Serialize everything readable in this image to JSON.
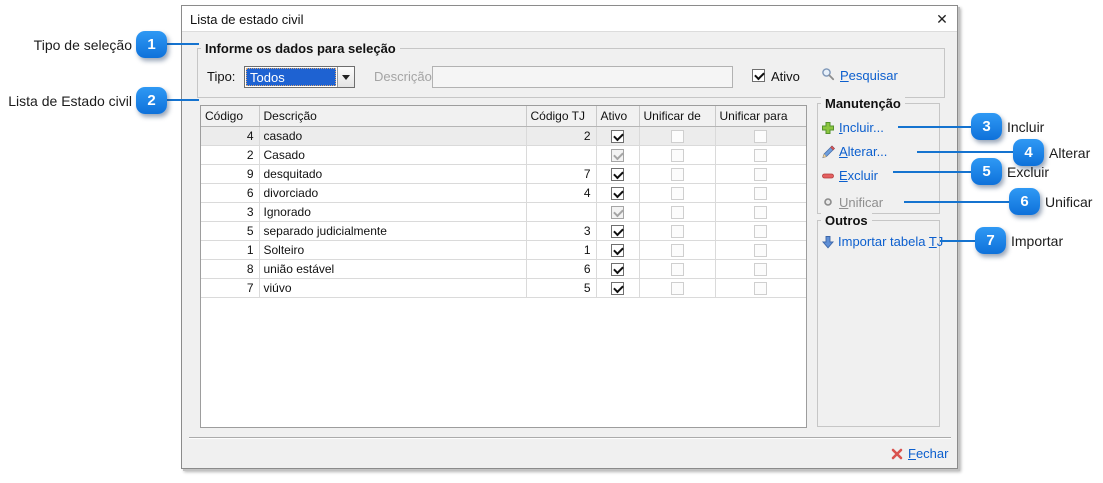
{
  "window": {
    "title": "Lista de estado civil"
  },
  "icons": {
    "close": "✕"
  },
  "filter": {
    "group_title": "Informe os dados para seleção",
    "tipo_label": "Tipo:",
    "tipo_value": "Todos",
    "descricao_label": "Descrição:",
    "descricao_value": "",
    "ativo_label": "Ativo",
    "ativo_checked": true,
    "pesquisar": {
      "u": "P",
      "post": "esquisar"
    }
  },
  "table": {
    "columns": [
      "Código",
      "Descrição",
      "Código TJ",
      "Ativo",
      "Unificar de",
      "Unificar para"
    ],
    "rows": [
      {
        "codigo": "4",
        "descricao": "casado",
        "codigo_tj": "2",
        "ativo": "checked",
        "unificar_de": "unchecked-disabled",
        "unificar_para": "unchecked-disabled",
        "selected": true
      },
      {
        "codigo": "2",
        "descricao": "Casado",
        "codigo_tj": "",
        "ativo": "checked-disabled",
        "unificar_de": "unchecked-disabled",
        "unificar_para": "unchecked-disabled",
        "selected": false
      },
      {
        "codigo": "9",
        "descricao": "desquitado",
        "codigo_tj": "7",
        "ativo": "checked",
        "unificar_de": "unchecked-disabled",
        "unificar_para": "unchecked-disabled",
        "selected": false
      },
      {
        "codigo": "6",
        "descricao": "divorciado",
        "codigo_tj": "4",
        "ativo": "checked",
        "unificar_de": "unchecked-disabled",
        "unificar_para": "unchecked-disabled",
        "selected": false
      },
      {
        "codigo": "3",
        "descricao": "Ignorado",
        "codigo_tj": "",
        "ativo": "checked-disabled",
        "unificar_de": "unchecked-disabled",
        "unificar_para": "unchecked-disabled",
        "selected": false
      },
      {
        "codigo": "5",
        "descricao": "separado judicialmente",
        "codigo_tj": "3",
        "ativo": "checked",
        "unificar_de": "unchecked-disabled",
        "unificar_para": "unchecked-disabled",
        "selected": false
      },
      {
        "codigo": "1",
        "descricao": "Solteiro",
        "codigo_tj": "1",
        "ativo": "checked",
        "unificar_de": "unchecked-disabled",
        "unificar_para": "unchecked-disabled",
        "selected": false
      },
      {
        "codigo": "8",
        "descricao": "união estável",
        "codigo_tj": "6",
        "ativo": "checked",
        "unificar_de": "unchecked-disabled",
        "unificar_para": "unchecked-disabled",
        "selected": false
      },
      {
        "codigo": "7",
        "descricao": "viúvo",
        "codigo_tj": "5",
        "ativo": "checked",
        "unificar_de": "unchecked-disabled",
        "unificar_para": "unchecked-disabled",
        "selected": false
      }
    ]
  },
  "maintenance": {
    "group_title": "Manutenção",
    "incluir": {
      "u": "I",
      "post": "ncluir..."
    },
    "alterar": {
      "u": "A",
      "post": "lterar..."
    },
    "excluir": {
      "u": "E",
      "post": "xcluir"
    },
    "unificar": {
      "u": "U",
      "post": "nificar"
    }
  },
  "others": {
    "group_title": "Outros",
    "importar": {
      "pre": "Importar tabela ",
      "u": "T",
      "post": "J"
    }
  },
  "footer": {
    "fechar": {
      "u": "F",
      "post": "echar"
    }
  },
  "callouts": {
    "c1": {
      "num": "1",
      "label": "Tipo de seleção"
    },
    "c2": {
      "num": "2",
      "label": "Lista de Estado civil"
    },
    "c3": {
      "num": "3",
      "label": "Incluir"
    },
    "c4": {
      "num": "4",
      "label": "Alterar"
    },
    "c5": {
      "num": "5",
      "label": "Excluir"
    },
    "c6": {
      "num": "6",
      "label": "Unificar"
    },
    "c7": {
      "num": "7",
      "label": "Importar"
    }
  },
  "colors": {
    "accent_link_blue": "#0c5fce",
    "callout_blue": "#1583e9",
    "selection_blue": "#1e62d2",
    "disabled_text": "#9b9b9b",
    "danger_red": "#d9534f",
    "success_green": "#76b947"
  }
}
